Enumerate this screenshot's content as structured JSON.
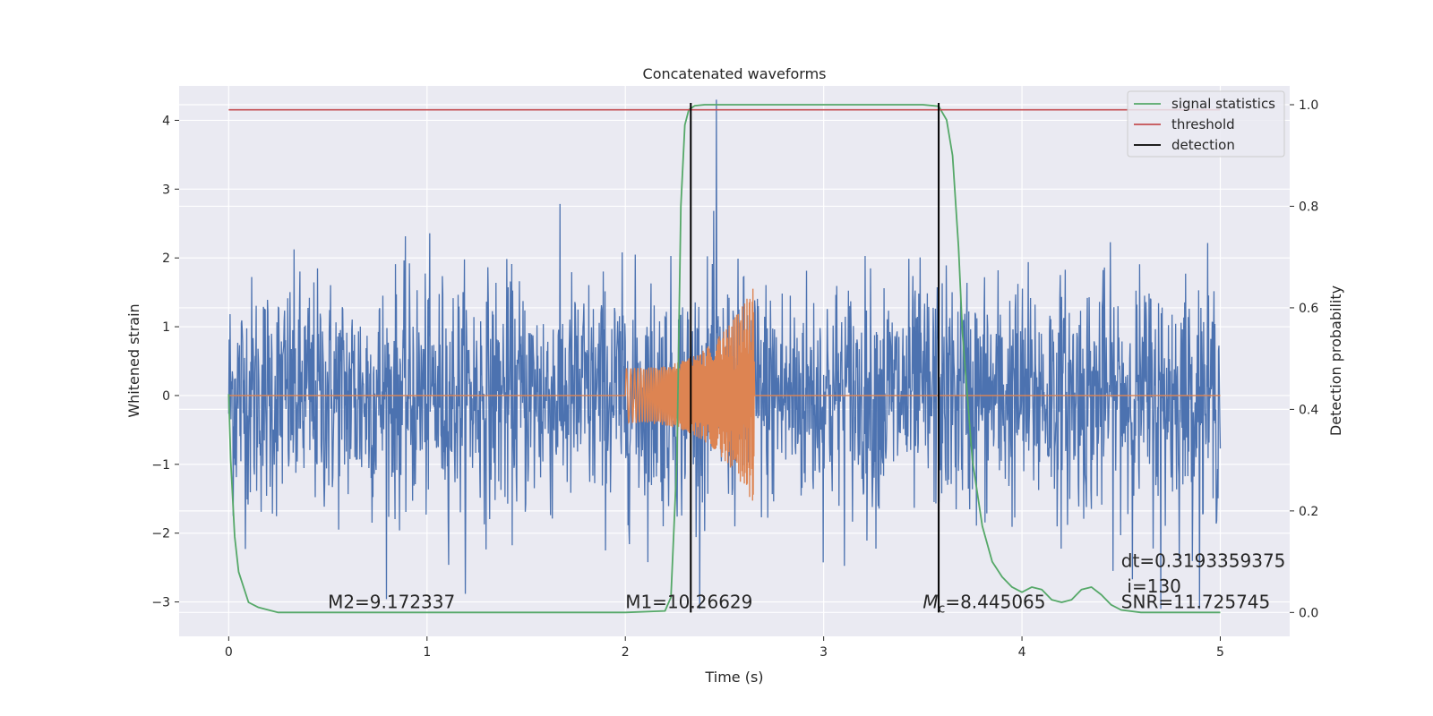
{
  "chart_data": {
    "type": "line",
    "title": "Concatenated waveforms",
    "xlabel": "Time (s)",
    "ylabel": "Whitened strain",
    "y2label": "Detection probability",
    "xlim": [
      -0.25,
      5.35
    ],
    "ylim": [
      -3.5,
      4.5
    ],
    "y2lim": [
      -0.047,
      1.037
    ],
    "xticks": [
      0,
      1,
      2,
      3,
      4,
      5
    ],
    "yticks": [
      -3,
      -2,
      -1,
      0,
      1,
      2,
      3,
      4
    ],
    "y2ticks": [
      0.0,
      0.2,
      0.4,
      0.6,
      0.8,
      1.0
    ],
    "xtick_labels": [
      "0",
      "1",
      "2",
      "3",
      "4",
      "5"
    ],
    "ytick_labels": [
      "−3",
      "−2",
      "−1",
      "0",
      "1",
      "2",
      "3",
      "4"
    ],
    "y2tick_labels": [
      "0.0",
      "0.2",
      "0.4",
      "0.6",
      "0.8",
      "1.0"
    ],
    "grid": true,
    "legend_position": "top-right",
    "series": [
      {
        "name": "",
        "axis": "left",
        "kind": "noise",
        "color": "#4c72b0",
        "x_range": [
          0,
          5
        ],
        "typical_range": [
          -1.6,
          1.6
        ],
        "min": -3.1,
        "max": 4.3
      },
      {
        "name": "",
        "axis": "left",
        "kind": "chirp",
        "color": "#dd8452",
        "x_range": [
          0,
          5
        ],
        "chirp_start": 2.0,
        "chirp_end": 2.65,
        "amplitude_start": 0.4,
        "amplitude_peak": 1.6
      },
      {
        "name": "signal statistics",
        "axis": "right",
        "color": "#55a868",
        "x": [
          0,
          0.01,
          0.03,
          0.05,
          0.1,
          0.15,
          0.25,
          0.5,
          1.0,
          1.5,
          2.0,
          2.2,
          2.23,
          2.26,
          2.28,
          2.3,
          2.32,
          2.35,
          2.4,
          2.5,
          3.0,
          3.5,
          3.58,
          3.62,
          3.65,
          3.68,
          3.7,
          3.75,
          3.8,
          3.85,
          3.9,
          3.95,
          4.0,
          4.05,
          4.1,
          4.15,
          4.2,
          4.25,
          4.3,
          4.35,
          4.4,
          4.45,
          4.5,
          4.6,
          4.7,
          5.0
        ],
        "y": [
          0.43,
          0.3,
          0.15,
          0.08,
          0.02,
          0.01,
          0.0,
          0.0,
          0.0,
          0.0,
          0.0,
          0.003,
          0.03,
          0.3,
          0.8,
          0.96,
          0.99,
          0.998,
          1.0,
          1.0,
          1.0,
          1.0,
          0.997,
          0.97,
          0.9,
          0.72,
          0.55,
          0.3,
          0.17,
          0.1,
          0.07,
          0.05,
          0.04,
          0.05,
          0.045,
          0.025,
          0.02,
          0.025,
          0.045,
          0.05,
          0.035,
          0.015,
          0.005,
          0.0,
          0.0,
          0.0
        ]
      },
      {
        "name": "threshold",
        "axis": "right",
        "color": "#c44e52",
        "x": [
          0,
          5
        ],
        "y": [
          0.99,
          0.99
        ]
      },
      {
        "name": "detection",
        "axis": "right",
        "kind": "vlines",
        "color": "#000000",
        "x": [
          2.33,
          3.58
        ],
        "y": [
          0.0,
          1.0
        ]
      }
    ],
    "annotations": [
      {
        "id": "m2",
        "text": "M2=9.172337",
        "x": 0.5,
        "y": -3.0
      },
      {
        "id": "m1",
        "text": "M1=10.26629",
        "x": 2.0,
        "y": -3.0
      },
      {
        "id": "mc",
        "text": "=8.445065",
        "symbol": "M",
        "sub": "c",
        "x": 3.5,
        "y": -3.0
      },
      {
        "id": "snr",
        "text": "SNR=11.725745",
        "x": 4.5,
        "y": -3.0
      },
      {
        "id": "dt",
        "text": "dt=0.3193359375",
        "x": 4.5,
        "y": -2.4
      },
      {
        "id": "i",
        "text": "i=130",
        "x": 4.53,
        "y": -2.77
      }
    ]
  }
}
